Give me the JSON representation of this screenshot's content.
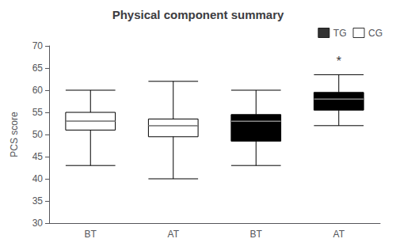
{
  "chart_data": {
    "type": "boxplot",
    "title": "Physical component summary",
    "ylabel": "PCS score",
    "categories": [
      "BT",
      "AT",
      "BT",
      "AT"
    ],
    "boxes": [
      {
        "whislo": 43,
        "q1": 51,
        "med": 53,
        "q3": 55,
        "whishi": 60,
        "series": "CG"
      },
      {
        "whislo": 40,
        "q1": 49.5,
        "med": 52,
        "q3": 53.5,
        "whishi": 62,
        "series": "CG"
      },
      {
        "whislo": 43,
        "q1": 48.5,
        "med": 53,
        "q3": 54.5,
        "whishi": 60,
        "series": "TG"
      },
      {
        "whislo": 52,
        "q1": 55.5,
        "med": 58,
        "q3": 59.5,
        "whishi": 63.5,
        "series": "TG"
      }
    ],
    "series": [
      {
        "name": "TG",
        "color": "black"
      },
      {
        "name": "CG",
        "color": "white"
      }
    ],
    "median_color": "#888888",
    "annotations": [
      {
        "text": "*",
        "box": 3,
        "y": 66.5
      }
    ],
    "ylim": [
      30,
      70
    ],
    "yticks": [
      30,
      35,
      40,
      45,
      50,
      55,
      60,
      65,
      70
    ],
    "legend": "upper right",
    "grid": false
  }
}
